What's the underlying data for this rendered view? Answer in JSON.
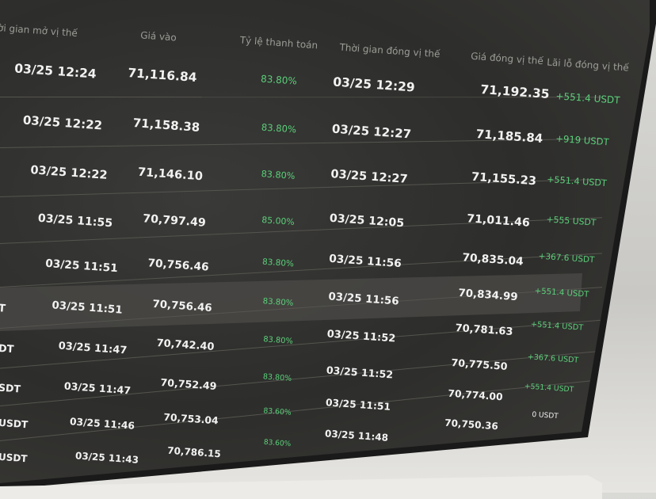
{
  "table": {
    "headers": [
      "Thời gian mở vị thế",
      "Giá vào",
      "Tỷ lệ thanh toán",
      "Thời gian đóng vị thế",
      "Giá đóng vị thế",
      "Lãi lỗ đóng vị thế"
    ],
    "rows": [
      {
        "symbol": "",
        "open_time": "03/25 12:24",
        "entry": "71,116.84",
        "rate": "83.80%",
        "close_time": "03/25 12:29",
        "close_price": "71,192.35",
        "pnl": "+551.4 USDT"
      },
      {
        "symbol": "",
        "open_time": "03/25 12:22",
        "entry": "71,158.38",
        "rate": "83.80%",
        "close_time": "03/25 12:27",
        "close_price": "71,185.84",
        "pnl": "+919 USDT"
      },
      {
        "symbol": "",
        "open_time": "03/25 12:22",
        "entry": "71,146.10",
        "rate": "83.80%",
        "close_time": "03/25 12:27",
        "close_price": "71,155.23",
        "pnl": "+551.4 USDT"
      },
      {
        "symbol": "",
        "open_time": "03/25 11:55",
        "entry": "70,797.49",
        "rate": "85.00%",
        "close_time": "03/25 12:05",
        "close_price": "71,011.46",
        "pnl": "+555 USDT"
      },
      {
        "symbol": "",
        "open_time": "03/25 11:51",
        "entry": "70,756.46",
        "rate": "83.80%",
        "close_time": "03/25 11:56",
        "close_price": "70,835.04",
        "pnl": "+367.6 USDT"
      },
      {
        "symbol": "T",
        "open_time": "03/25 11:51",
        "entry": "70,756.46",
        "rate": "83.80%",
        "close_time": "03/25 11:56",
        "close_price": "70,834.99",
        "pnl": "+551.4 USDT"
      },
      {
        "symbol": "DT",
        "open_time": "03/25 11:47",
        "entry": "70,742.40",
        "rate": "83.80%",
        "close_time": "03/25 11:52",
        "close_price": "70,781.63",
        "pnl": "+551.4 USDT"
      },
      {
        "symbol": "SDT",
        "open_time": "03/25 11:47",
        "entry": "70,752.49",
        "rate": "83.80%",
        "close_time": "03/25 11:52",
        "close_price": "70,775.50",
        "pnl": "+367.6 USDT"
      },
      {
        "symbol": "USDT",
        "open_time": "03/25 11:46",
        "entry": "70,753.04",
        "rate": "83.60%",
        "close_time": "03/25 11:51",
        "close_price": "70,774.00",
        "pnl": "+551.4 USDT"
      },
      {
        "symbol": "USDT",
        "open_time": "03/25 11:43",
        "entry": "70,786.15",
        "rate": "83.60%",
        "close_time": "03/25 11:48",
        "close_price": "70,750.36",
        "pnl": "0 USDT"
      }
    ],
    "highlighted_row": 5,
    "colors": {
      "profit": "#5bd07a",
      "background": "#2d2d2b"
    }
  }
}
